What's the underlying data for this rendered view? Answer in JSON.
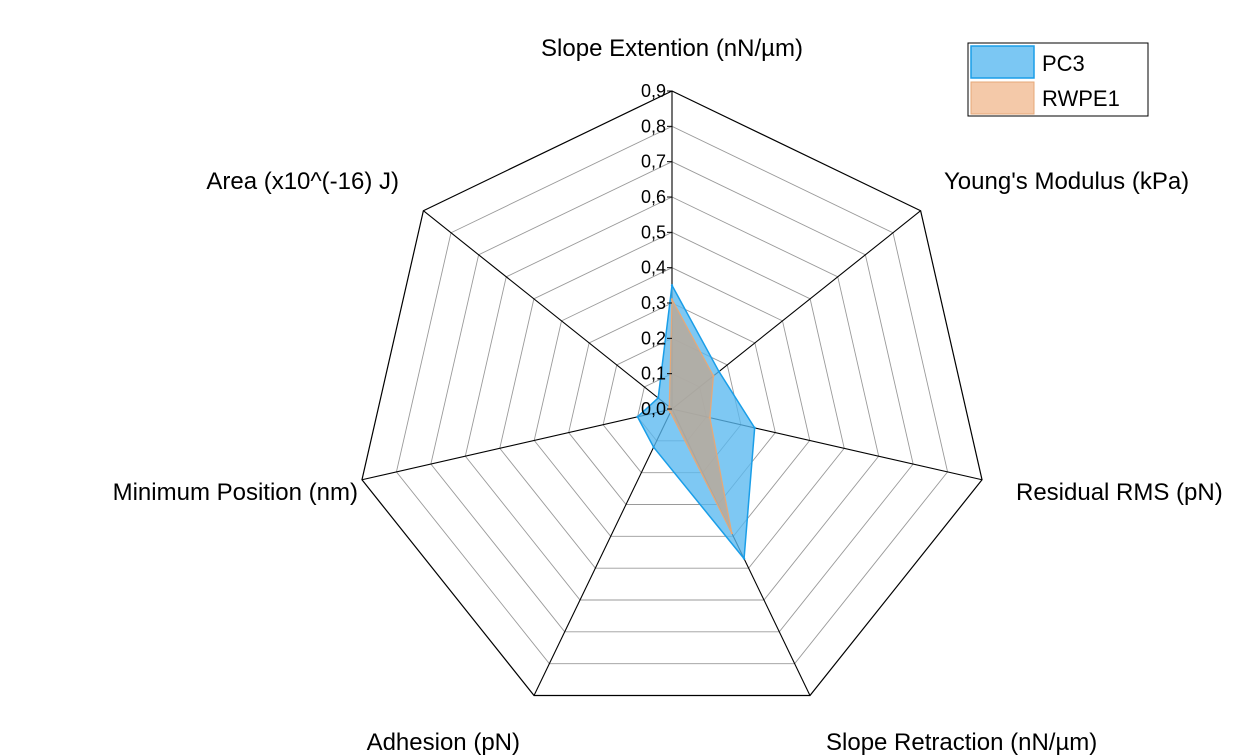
{
  "chart_data": {
    "type": "radar",
    "title": "",
    "axes": [
      "Slope Extention (nN/µm)",
      "Young's Modulus (kPa)",
      "Residual RMS (pN)",
      "Slope Retraction (nN/µm)",
      "Adhesion (pN)",
      "Minimum Position (nm)",
      "Area (x10^(-16) J)"
    ],
    "ticks": [
      "0,0",
      "0,1",
      "0,2",
      "0,3",
      "0,4",
      "0,5",
      "0,6",
      "0,7",
      "0,8",
      "0,9"
    ],
    "rlim": [
      0,
      0.9
    ],
    "series": [
      {
        "name": "PC3",
        "values": [
          0.35,
          0.17,
          0.24,
          0.47,
          0.12,
          0.1,
          0.05
        ],
        "color": "#5ab9f0"
      },
      {
        "name": "RWPE1",
        "values": [
          0.31,
          0.15,
          0.11,
          0.39,
          0.01,
          0.01,
          0.01
        ],
        "color": "#f2c09a"
      }
    ],
    "legend_position": "top-right",
    "grid": true
  }
}
